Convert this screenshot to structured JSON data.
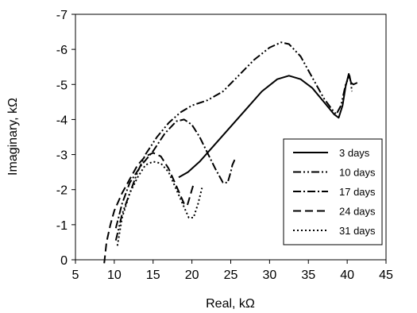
{
  "chart_data": {
    "type": "line",
    "xlabel": "Real, kΩ",
    "ylabel": "Imaginary, kΩ",
    "xlim": [
      5,
      45
    ],
    "ylim": [
      0,
      -7
    ],
    "xticks": [
      "5",
      "10",
      "15",
      "20",
      "25",
      "30",
      "35",
      "40",
      "45"
    ],
    "yticks": [
      "0",
      "-1",
      "-2",
      "-3",
      "-4",
      "-5",
      "-6",
      "-7"
    ],
    "grid": false,
    "legend_position": "bottom-right",
    "series": [
      {
        "name": "3 days",
        "dash": "solid",
        "points": [
          [
            18.3,
            -2.35
          ],
          [
            19.5,
            -2.5
          ],
          [
            21,
            -2.8
          ],
          [
            23,
            -3.3
          ],
          [
            25,
            -3.8
          ],
          [
            27,
            -4.3
          ],
          [
            29,
            -4.8
          ],
          [
            31,
            -5.15
          ],
          [
            32.5,
            -5.25
          ],
          [
            34,
            -5.15
          ],
          [
            35.5,
            -4.9
          ],
          [
            37,
            -4.5
          ],
          [
            38.3,
            -4.15
          ],
          [
            38.9,
            -4.05
          ],
          [
            39.4,
            -4.4
          ],
          [
            39.8,
            -4.95
          ],
          [
            40.2,
            -5.3
          ],
          [
            40.5,
            -5.05
          ],
          [
            40.8,
            -5.0
          ],
          [
            41.3,
            -5.05
          ]
        ]
      },
      {
        "name": "10 days",
        "dash": "dash-dot-dot",
        "points": [
          [
            10.2,
            -0.55
          ],
          [
            11,
            -1.3
          ],
          [
            12,
            -1.9
          ],
          [
            13,
            -2.5
          ],
          [
            14,
            -3.0
          ],
          [
            15.5,
            -3.5
          ],
          [
            17,
            -3.9
          ],
          [
            18.5,
            -4.2
          ],
          [
            20,
            -4.4
          ],
          [
            22,
            -4.55
          ],
          [
            24,
            -4.8
          ],
          [
            26,
            -5.25
          ],
          [
            28,
            -5.7
          ],
          [
            30,
            -6.05
          ],
          [
            31.5,
            -6.2
          ],
          [
            32.5,
            -6.15
          ],
          [
            34,
            -5.8
          ],
          [
            35.5,
            -5.2
          ],
          [
            37,
            -4.6
          ],
          [
            38,
            -4.3
          ],
          [
            38.6,
            -4.15
          ],
          [
            39.2,
            -4.4
          ],
          [
            39.8,
            -5.0
          ],
          [
            40.3,
            -5.25
          ],
          [
            40.5,
            -5.0
          ],
          [
            40.6,
            -4.8
          ]
        ]
      },
      {
        "name": "17 days",
        "dash": "dash-dot",
        "points": [
          [
            10.2,
            -0.9
          ],
          [
            11,
            -1.6
          ],
          [
            12,
            -2.2
          ],
          [
            13.5,
            -2.7
          ],
          [
            15,
            -3.1
          ],
          [
            16.5,
            -3.6
          ],
          [
            18,
            -3.95
          ],
          [
            19,
            -4.0
          ],
          [
            20,
            -3.85
          ],
          [
            21,
            -3.5
          ],
          [
            22,
            -3.05
          ],
          [
            23,
            -2.6
          ],
          [
            24,
            -2.2
          ],
          [
            24.6,
            -2.2
          ],
          [
            25,
            -2.5
          ],
          [
            25.2,
            -2.7
          ],
          [
            25.5,
            -2.85
          ]
        ]
      },
      {
        "name": "24 days",
        "dash": "dashed",
        "points": [
          [
            8.7,
            0.1
          ],
          [
            9,
            -0.5
          ],
          [
            9.5,
            -1.0
          ],
          [
            10,
            -1.4
          ],
          [
            11,
            -1.9
          ],
          [
            12,
            -2.3
          ],
          [
            13,
            -2.7
          ],
          [
            14,
            -2.95
          ],
          [
            15,
            -3.05
          ],
          [
            16,
            -2.95
          ],
          [
            17,
            -2.6
          ],
          [
            18,
            -2.1
          ],
          [
            19,
            -1.6
          ],
          [
            19.4,
            -1.55
          ],
          [
            19.8,
            -1.85
          ],
          [
            20.2,
            -2.15
          ]
        ]
      },
      {
        "name": "31 days",
        "dash": "dotted",
        "points": [
          [
            10.4,
            -0.4
          ],
          [
            11,
            -1.2
          ],
          [
            12,
            -1.9
          ],
          [
            13,
            -2.35
          ],
          [
            14,
            -2.7
          ],
          [
            15,
            -2.8
          ],
          [
            16,
            -2.75
          ],
          [
            17,
            -2.5
          ],
          [
            18,
            -2.0
          ],
          [
            19,
            -1.5
          ],
          [
            19.6,
            -1.2
          ],
          [
            20.2,
            -1.2
          ],
          [
            20.8,
            -1.6
          ],
          [
            21.3,
            -2.05
          ]
        ]
      }
    ]
  }
}
